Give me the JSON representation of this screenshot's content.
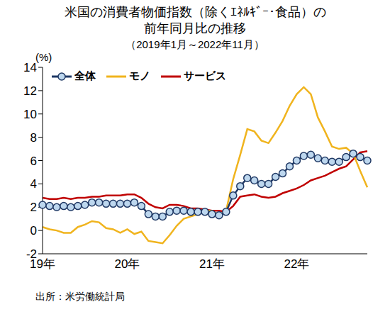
{
  "chart_data": {
    "type": "line",
    "title": "米国の消費者物価指数（除くｴﾈﾙｷﾞｰ･食品）の\n前年同月比の推移",
    "subtitle": "（2019年1月～2022年11月）",
    "ylabel": "(%)",
    "source": "出所：米労働統計局",
    "categories": [
      "19年",
      null,
      null,
      null,
      null,
      null,
      null,
      null,
      null,
      null,
      null,
      null,
      "20年",
      null,
      null,
      null,
      null,
      null,
      null,
      null,
      null,
      null,
      null,
      null,
      "21年",
      null,
      null,
      null,
      null,
      null,
      null,
      null,
      null,
      null,
      null,
      null,
      "22年",
      null,
      null,
      null,
      null,
      null,
      null,
      null,
      null,
      null,
      null
    ],
    "series": [
      {
        "name": "全体",
        "color": "#1f3864",
        "marker": "circle",
        "line_style": "solid",
        "values": [
          2.2,
          2.1,
          2.0,
          2.1,
          2.0,
          2.1,
          2.2,
          2.4,
          2.4,
          2.3,
          2.3,
          2.3,
          2.3,
          2.4,
          2.1,
          1.4,
          1.2,
          1.2,
          1.6,
          1.7,
          1.7,
          1.6,
          1.6,
          1.6,
          1.4,
          1.3,
          1.6,
          3.0,
          3.8,
          4.5,
          4.3,
          4.0,
          4.0,
          4.6,
          4.9,
          5.5,
          6.0,
          6.4,
          6.5,
          6.2,
          6.0,
          5.9,
          5.9,
          6.3,
          6.6,
          6.3,
          6.0
        ]
      },
      {
        "name": "モノ",
        "color": "#f0b41e",
        "marker": "none",
        "line_style": "solid",
        "values": [
          0.3,
          0.1,
          0.0,
          -0.2,
          -0.2,
          0.3,
          0.5,
          0.8,
          0.7,
          0.2,
          0.1,
          -0.2,
          0.1,
          -0.3,
          -0.1,
          -0.9,
          -1.0,
          -1.1,
          -0.4,
          0.4,
          1.0,
          1.2,
          1.4,
          1.7,
          1.7,
          1.3,
          1.7,
          4.4,
          6.5,
          8.7,
          8.5,
          7.7,
          7.5,
          8.4,
          9.4,
          10.7,
          11.7,
          12.3,
          11.7,
          9.7,
          8.5,
          7.2,
          7.0,
          7.1,
          6.6,
          5.1,
          3.7
        ]
      },
      {
        "name": "サービス",
        "color": "#c00000",
        "marker": "none",
        "line_style": "solid",
        "values": [
          2.8,
          2.7,
          2.7,
          2.8,
          2.7,
          2.8,
          2.8,
          2.9,
          2.9,
          3.0,
          3.0,
          3.0,
          3.1,
          3.1,
          2.8,
          2.3,
          2.0,
          1.9,
          2.2,
          2.2,
          2.1,
          1.9,
          1.9,
          1.8,
          1.7,
          1.7,
          1.6,
          2.1,
          2.9,
          3.0,
          3.1,
          2.9,
          2.8,
          2.9,
          3.2,
          3.4,
          3.6,
          3.9,
          4.3,
          4.5,
          4.7,
          5.0,
          5.3,
          5.5,
          6.1,
          6.7,
          6.8
        ]
      }
    ],
    "ylim": [
      -2,
      14
    ],
    "yticks": [
      -2,
      0,
      2,
      4,
      6,
      8,
      10,
      12,
      14
    ],
    "grid": false,
    "legend": "upper left"
  }
}
